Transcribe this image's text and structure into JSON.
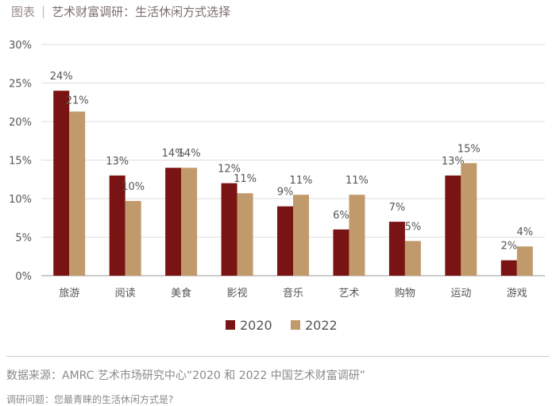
{
  "header": {
    "tag": "图表",
    "title": "艺术财富调研：生活休闲方式选择"
  },
  "footer": {
    "source": "数据来源：AMRC 艺术市场研究中心“2020 和 2022 中国艺术财富调研”",
    "question": "调研问题：您最青睐的生活休闲方式是?"
  },
  "colors": {
    "series_2020": "#7a1313",
    "series_2022": "#c19a6b",
    "grid": "#dddddd",
    "axis": "#999999"
  },
  "chart_data": {
    "type": "bar",
    "title": "艺术财富调研：生活休闲方式选择",
    "xlabel": "",
    "ylabel": "",
    "ylim": [
      0,
      30
    ],
    "yticks": [
      "0%",
      "5%",
      "10%",
      "15%",
      "20%",
      "25%",
      "30%"
    ],
    "grid": true,
    "legend_position": "bottom",
    "categories": [
      "旅游",
      "阅读",
      "美食",
      "影视",
      "音乐",
      "艺术",
      "购物",
      "运动",
      "游戏"
    ],
    "series": [
      {
        "name": "2020",
        "values": [
          24,
          13,
          14,
          12,
          9,
          6,
          7,
          13,
          2
        ],
        "labels": [
          "24%",
          "13%",
          "14%",
          "12%",
          "9%",
          "6%",
          "7%",
          "13%",
          "2%"
        ]
      },
      {
        "name": "2022",
        "values": [
          21.3,
          9.7,
          14,
          10.7,
          10.5,
          10.5,
          4.5,
          14.6,
          3.8
        ],
        "labels": [
          "21%",
          "10%",
          "14%",
          "11%",
          "11%",
          "11%",
          "5%",
          "15%",
          "4%"
        ]
      }
    ]
  }
}
